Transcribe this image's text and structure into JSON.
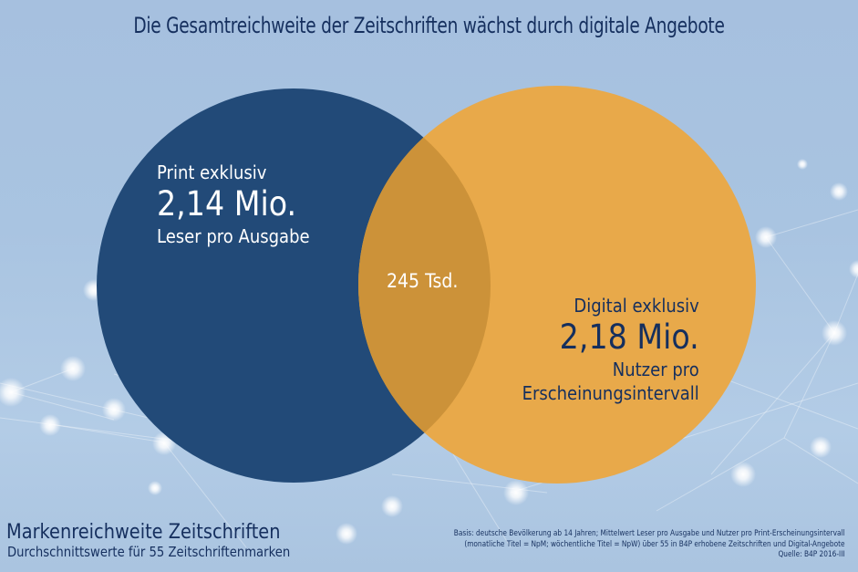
{
  "title": "Die Gesamtreichweite der Zeitschriften wächst durch digitale Angebote",
  "chart_data": {
    "type": "venn",
    "title": "Die Gesamtreichweite der Zeitschriften wächst durch digitale Angebote",
    "sets": [
      {
        "name": "Print exklusiv",
        "value": 2.14,
        "value_label": "2,14 Mio.",
        "unit_lines": [
          "Leser pro Ausgabe"
        ],
        "color": "#224a78",
        "text_color": "#ffffff"
      },
      {
        "name": "Digital exklusiv",
        "value": 2.18,
        "value_label": "2,18 Mio.",
        "unit_lines": [
          "Nutzer pro",
          "Erscheinungsintervall"
        ],
        "color": "#e8a94a",
        "text_color": "#152f5e"
      }
    ],
    "intersection": {
      "value": 0.245,
      "value_label": "245 Tsd.",
      "color": "#cc9239",
      "text_color": "#ffffff"
    },
    "units": "Mio."
  },
  "footer": {
    "title": "Markenreichweite Zeitschriften",
    "subtitle": "Durchschnittswerte für 55 Zeitschriftenmarken",
    "basis_lines": [
      "Basis: deutsche Bevölkerung ab 14 Jahren; Mittelwert Leser pro Ausgabe und Nutzer pro Print-Erscheinungsintervall",
      "(monatliche Titel = NpM; wöchentliche Titel = NpW) über 55 in B4P erhobene Zeitschriften und Digital-Angebote",
      "Quelle: B4P 2016-III"
    ]
  },
  "colors": {
    "background": "#a9c4e1",
    "title_text": "#152f5e"
  }
}
